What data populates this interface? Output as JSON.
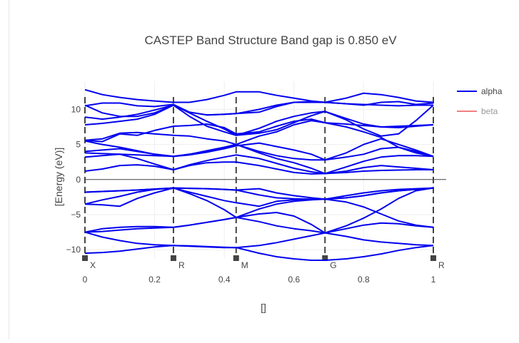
{
  "chart_data": {
    "type": "line",
    "title": "CASTEP Band Structure  Band gap is 0.850 eV",
    "xlabel": "[]",
    "ylabel": "[Energy (eV)]",
    "xlim": [
      0,
      1
    ],
    "ylim": [
      -11.2,
      14
    ],
    "xticks": [
      0,
      0.2,
      0.4,
      0.6,
      0.8,
      1
    ],
    "xtick_labels": [
      "0",
      "0.2",
      "0.4",
      "0.6",
      "0.8",
      "1"
    ],
    "yticks": [
      -10,
      -5,
      0,
      5,
      10
    ],
    "ytick_labels": [
      "−10",
      "−5",
      "0",
      "5",
      "10"
    ],
    "kpoints": [
      {
        "x": 0.0,
        "label": "X"
      },
      {
        "x": 0.254,
        "label": "R"
      },
      {
        "x": 0.434,
        "label": "M"
      },
      {
        "x": 0.689,
        "label": "G"
      },
      {
        "x": 1.0,
        "label": "R"
      }
    ],
    "legend": {
      "placement": "top-right",
      "entries": [
        "alpha",
        "beta"
      ]
    },
    "grid": true,
    "colors": {
      "alpha": "#0000ee",
      "beta": "#f08080",
      "kpoint_line": "#444444"
    },
    "series": [
      {
        "name": "alpha",
        "bands": [
          {
            "x": [
              0,
              0.05,
              0.1,
              0.15,
              0.2,
              0.254,
              0.3,
              0.35,
              0.4,
              0.434,
              0.5,
              0.55,
              0.6,
              0.65,
              0.689,
              0.75,
              0.8,
              0.85,
              0.9,
              0.95,
              1.0
            ],
            "y": [
              -10.5,
              -10.4,
              -10.2,
              -9.9,
              -9.6,
              -9.4,
              -9.5,
              -9.6,
              -9.7,
              -9.7,
              -10.5,
              -11.0,
              -11.3,
              -11.5,
              -11.5,
              -11.3,
              -11.0,
              -10.6,
              -10.1,
              -9.7,
              -9.4
            ]
          },
          {
            "x": [
              0,
              0.05,
              0.1,
              0.15,
              0.2,
              0.254,
              0.3,
              0.35,
              0.4,
              0.434,
              0.5,
              0.55,
              0.6,
              0.65,
              0.689,
              0.75,
              0.8,
              0.85,
              0.9,
              0.95,
              1.0
            ],
            "y": [
              -7.5,
              -8.2,
              -8.7,
              -9.1,
              -9.3,
              -9.4,
              -9.45,
              -9.55,
              -9.65,
              -9.7,
              -9.4,
              -9.0,
              -8.5,
              -8.0,
              -7.6,
              -8.1,
              -8.6,
              -8.9,
              -9.1,
              -9.3,
              -9.4
            ]
          },
          {
            "x": [
              0,
              0.05,
              0.1,
              0.15,
              0.2,
              0.254,
              0.3,
              0.35,
              0.4,
              0.434,
              0.5,
              0.55,
              0.6,
              0.65,
              0.689,
              0.75,
              0.8,
              0.85,
              0.9,
              0.95,
              1.0
            ],
            "y": [
              -7.5,
              -7.0,
              -6.8,
              -6.7,
              -6.7,
              -6.8,
              -6.5,
              -6.1,
              -5.7,
              -5.4,
              -6.0,
              -6.6,
              -7.0,
              -7.3,
              -7.6,
              -7.0,
              -6.5,
              -6.2,
              -6.3,
              -6.6,
              -6.8
            ]
          },
          {
            "x": [
              0,
              0.05,
              0.1,
              0.15,
              0.2,
              0.254,
              0.3,
              0.35,
              0.4,
              0.434,
              0.5,
              0.55,
              0.6,
              0.65,
              0.689,
              0.75,
              0.8,
              0.85,
              0.9,
              0.95,
              1.0
            ],
            "y": [
              -7.5,
              -7.4,
              -7.2,
              -7.0,
              -6.9,
              -6.8,
              -6.5,
              -6.1,
              -5.7,
              -5.4,
              -4.9,
              -4.7,
              -5.2,
              -6.4,
              -7.6,
              -6.6,
              -5.5,
              -4.2,
              -2.7,
              -1.6,
              -1.2
            ]
          },
          {
            "x": [
              0,
              0.05,
              0.1,
              0.15,
              0.2,
              0.254,
              0.3,
              0.35,
              0.4,
              0.434,
              0.5,
              0.55,
              0.6,
              0.65,
              0.689,
              0.75,
              0.8,
              0.85,
              0.9,
              0.95,
              1.0
            ],
            "y": [
              -3.5,
              -3.6,
              -3.8,
              -2.7,
              -1.9,
              -1.2,
              -2.0,
              -3.0,
              -4.3,
              -5.4,
              -4.2,
              -3.5,
              -3.1,
              -2.9,
              -2.8,
              -3.2,
              -3.9,
              -4.9,
              -5.9,
              -6.5,
              -6.8
            ]
          },
          {
            "x": [
              0,
              0.05,
              0.1,
              0.15,
              0.2,
              0.254,
              0.3,
              0.35,
              0.4,
              0.434,
              0.5,
              0.55,
              0.6,
              0.65,
              0.689,
              0.75,
              0.8,
              0.85,
              0.9,
              0.95,
              1.0
            ],
            "y": [
              -3.5,
              -2.9,
              -2.4,
              -1.8,
              -1.4,
              -1.2,
              -1.8,
              -2.4,
              -3.0,
              -3.3,
              -3.8,
              -3.1,
              -2.9,
              -2.85,
              -2.8,
              -2.6,
              -2.3,
              -1.9,
              -1.6,
              -1.4,
              -1.2
            ]
          },
          {
            "x": [
              0,
              0.05,
              0.1,
              0.15,
              0.2,
              0.254,
              0.3,
              0.35,
              0.4,
              0.434,
              0.5,
              0.55,
              0.6,
              0.65,
              0.689,
              0.75,
              0.8,
              0.85,
              0.9,
              0.95,
              1.0
            ],
            "y": [
              -1.8,
              -1.7,
              -1.6,
              -1.5,
              -1.35,
              -1.2,
              -1.25,
              -1.3,
              -1.4,
              -1.5,
              -2.2,
              -2.6,
              -2.75,
              -2.8,
              -2.8,
              -2.6,
              -2.3,
              -1.9,
              -1.6,
              -1.4,
              -1.2
            ]
          },
          {
            "x": [
              0,
              0.05,
              0.1,
              0.15,
              0.2,
              0.254,
              0.3,
              0.35,
              0.4,
              0.434,
              0.5,
              0.55,
              0.6,
              0.65,
              0.689,
              0.75,
              0.8,
              0.85,
              0.9,
              0.95,
              1.0
            ],
            "y": [
              -1.8,
              -1.7,
              -1.6,
              -1.5,
              -1.35,
              -1.2,
              -1.25,
              -1.3,
              -1.4,
              -1.5,
              -1.3,
              -1.9,
              -2.3,
              -2.6,
              -2.8,
              -2.3,
              -1.9,
              -1.6,
              -1.4,
              -1.3,
              -1.2
            ]
          },
          {
            "x": [
              0,
              0.05,
              0.1,
              0.15,
              0.2,
              0.254,
              0.3,
              0.35,
              0.4,
              0.434,
              0.5,
              0.55,
              0.6,
              0.65,
              0.689,
              0.75,
              0.8,
              0.85,
              0.9,
              0.95,
              1.0
            ],
            "y": [
              1.2,
              1.5,
              2.0,
              2.1,
              1.9,
              1.4,
              2.0,
              2.4,
              2.5,
              2.5,
              2.0,
              1.5,
              1.0,
              0.8,
              0.85,
              1.0,
              1.2,
              1.3,
              1.35,
              1.4,
              1.4
            ]
          },
          {
            "x": [
              0,
              0.05,
              0.1,
              0.15,
              0.2,
              0.254,
              0.3,
              0.35,
              0.4,
              0.434,
              0.5,
              0.55,
              0.6,
              0.65,
              0.689,
              0.75,
              0.8,
              0.85,
              0.9,
              0.95,
              1.0
            ],
            "y": [
              3.2,
              3.4,
              3.6,
              3.0,
              2.2,
              1.4,
              2.1,
              2.7,
              3.2,
              3.5,
              3.0,
              2.3,
              1.6,
              1.1,
              0.85,
              1.2,
              1.7,
              2.0,
              1.8,
              1.6,
              1.4
            ]
          },
          {
            "x": [
              0,
              0.05,
              0.1,
              0.15,
              0.2,
              0.254,
              0.3,
              0.35,
              0.4,
              0.434,
              0.5,
              0.55,
              0.6,
              0.65,
              0.689,
              0.75,
              0.8,
              0.85,
              0.9,
              0.95,
              1.0
            ],
            "y": [
              3.8,
              3.7,
              3.6,
              3.5,
              3.4,
              3.3,
              3.6,
              4.1,
              4.6,
              5.0,
              3.8,
              3.0,
              2.4,
              1.6,
              0.85,
              1.8,
              2.6,
              3.2,
              3.4,
              3.4,
              3.3
            ]
          },
          {
            "x": [
              0,
              0.05,
              0.1,
              0.15,
              0.2,
              0.254,
              0.3,
              0.35,
              0.4,
              0.434,
              0.5,
              0.55,
              0.6,
              0.65,
              0.689,
              0.75,
              0.8,
              0.85,
              0.9,
              0.95,
              1.0
            ],
            "y": [
              4.0,
              4.2,
              4.4,
              4.0,
              3.6,
              3.3,
              3.5,
              3.9,
              4.5,
              5.0,
              4.0,
              3.4,
              3.0,
              2.8,
              2.8,
              3.2,
              3.6,
              4.4,
              4.6,
              4.0,
              3.3
            ]
          },
          {
            "x": [
              0,
              0.05,
              0.1,
              0.15,
              0.2,
              0.254,
              0.3,
              0.35,
              0.4,
              0.434,
              0.5,
              0.55,
              0.6,
              0.65,
              0.689,
              0.75,
              0.8,
              0.85,
              0.9,
              0.95,
              1.0
            ],
            "y": [
              5.5,
              5.0,
              4.6,
              4.1,
              3.6,
              3.3,
              3.6,
              3.9,
              4.4,
              4.8,
              5.2,
              4.7,
              4.2,
              3.6,
              2.8,
              3.8,
              5.0,
              5.8,
              5.0,
              4.2,
              3.3
            ]
          },
          {
            "x": [
              0,
              0.05,
              0.1,
              0.15,
              0.2,
              0.254,
              0.3,
              0.35,
              0.4,
              0.434,
              0.5,
              0.55,
              0.6,
              0.65,
              0.689,
              0.75,
              0.8,
              0.85,
              0.9,
              0.95,
              1.0
            ],
            "y": [
              5.6,
              5.8,
              6.6,
              6.7,
              6.5,
              6.3,
              6.2,
              5.8,
              5.5,
              5.0,
              6.2,
              6.8,
              7.8,
              8.4,
              8.1,
              7.5,
              6.8,
              6.0,
              4.6,
              3.8,
              3.3
            ]
          },
          {
            "x": [
              0,
              0.05,
              0.1,
              0.15,
              0.2,
              0.254,
              0.3,
              0.35,
              0.4,
              0.434,
              0.5,
              0.55,
              0.6,
              0.65,
              0.689,
              0.75,
              0.8,
              0.85,
              0.9,
              0.95,
              1.0
            ],
            "y": [
              5.6,
              5.4,
              6.5,
              6.3,
              7.0,
              7.6,
              7.7,
              7.9,
              7.4,
              6.5,
              6.8,
              7.6,
              8.3,
              8.6,
              8.1,
              7.9,
              7.7,
              7.5,
              7.6,
              7.7,
              7.8
            ]
          },
          {
            "x": [
              0,
              0.05,
              0.1,
              0.15,
              0.2,
              0.254,
              0.3,
              0.35,
              0.4,
              0.434,
              0.5,
              0.55,
              0.6,
              0.65,
              0.689,
              0.75,
              0.8,
              0.85,
              0.9,
              0.95,
              1.0
            ],
            "y": [
              7.8,
              8.0,
              8.3,
              8.6,
              9.3,
              10.6,
              9.0,
              7.6,
              6.8,
              6.3,
              6.6,
              7.1,
              8.1,
              9.1,
              9.7,
              8.7,
              7.9,
              7.5,
              7.4,
              7.6,
              7.8
            ]
          },
          {
            "x": [
              0,
              0.05,
              0.1,
              0.15,
              0.2,
              0.254,
              0.3,
              0.35,
              0.4,
              0.434,
              0.5,
              0.55,
              0.6,
              0.65,
              0.689,
              0.75,
              0.8,
              0.85,
              0.9,
              0.95,
              1.0
            ],
            "y": [
              8.9,
              8.6,
              8.9,
              9.3,
              9.9,
              10.6,
              9.5,
              8.3,
              7.2,
              6.3,
              7.3,
              8.3,
              9.0,
              9.5,
              9.7,
              8.5,
              7.2,
              6.2,
              6.5,
              8.4,
              10.6
            ]
          },
          {
            "x": [
              0,
              0.05,
              0.1,
              0.15,
              0.2,
              0.254,
              0.3,
              0.35,
              0.4,
              0.434,
              0.5,
              0.55,
              0.6,
              0.65,
              0.689,
              0.75,
              0.8,
              0.85,
              0.9,
              0.95,
              1.0
            ],
            "y": [
              10.6,
              9.5,
              9.0,
              9.0,
              9.5,
              10.6,
              9.6,
              9.2,
              9.3,
              9.4,
              10.0,
              10.6,
              11.0,
              11.1,
              11.0,
              10.8,
              10.7,
              10.6,
              10.5,
              10.6,
              10.6
            ]
          },
          {
            "x": [
              0,
              0.05,
              0.1,
              0.15,
              0.2,
              0.254,
              0.3,
              0.35,
              0.4,
              0.434,
              0.5,
              0.55,
              0.6,
              0.65,
              0.689,
              0.75,
              0.8,
              0.85,
              0.9,
              0.95,
              1.0
            ],
            "y": [
              10.5,
              10.9,
              10.9,
              10.5,
              10.4,
              10.7,
              9.6,
              9.2,
              9.3,
              9.4,
              9.6,
              10.4,
              11.0,
              11.0,
              11.0,
              10.8,
              10.6,
              11.0,
              11.1,
              10.7,
              10.9
            ]
          },
          {
            "x": [
              0,
              0.05,
              0.1,
              0.15,
              0.2,
              0.254,
              0.3,
              0.35,
              0.4,
              0.434,
              0.5,
              0.55,
              0.6,
              0.65,
              0.689,
              0.75,
              0.8,
              0.85,
              0.9,
              0.95,
              1.0
            ],
            "y": [
              12.8,
              12.1,
              11.7,
              11.4,
              11.2,
              11.0,
              11.0,
              11.4,
              12.0,
              12.5,
              12.5,
              12.0,
              11.6,
              11.2,
              11.0,
              11.6,
              12.3,
              12.1,
              11.7,
              11.2,
              11.0
            ]
          }
        ]
      },
      {
        "name": "beta",
        "bands": []
      }
    ]
  }
}
